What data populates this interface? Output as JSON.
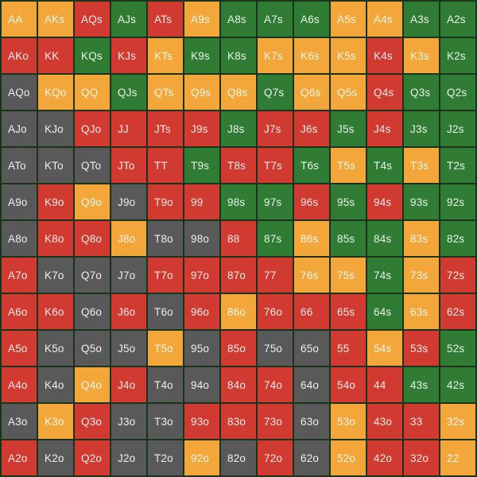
{
  "colors": {
    "orange": "#f3a63a",
    "red": "#d13a30",
    "green": "#307c34",
    "gray": "#595959",
    "grid_line": "#1b331b",
    "text": "rgba(255,255,255,0.90)"
  },
  "chart_data": {
    "type": "heatmap",
    "grid_size": 13,
    "legend_position": "none",
    "grid": "on",
    "color_categories": [
      "orange",
      "red",
      "green",
      "gray"
    ],
    "labels": [
      [
        "AA",
        "AKs",
        "AQs",
        "AJs",
        "ATs",
        "A9s",
        "A8s",
        "A7s",
        "A6s",
        "A5s",
        "A4s",
        "A3s",
        "A2s"
      ],
      [
        "AKo",
        "KK",
        "KQs",
        "KJs",
        "KTs",
        "K9s",
        "K8s",
        "K7s",
        "K6s",
        "K5s",
        "K4s",
        "K3s",
        "K2s"
      ],
      [
        "AQo",
        "KQo",
        "QQ",
        "QJs",
        "QTs",
        "Q9s",
        "Q8s",
        "Q7s",
        "Q6s",
        "Q5s",
        "Q4s",
        "Q3s",
        "Q2s"
      ],
      [
        "AJo",
        "KJo",
        "QJo",
        "JJ",
        "JTs",
        "J9s",
        "J8s",
        "J7s",
        "J6s",
        "J5s",
        "J4s",
        "J3s",
        "J2s"
      ],
      [
        "ATo",
        "KTo",
        "QTo",
        "JTo",
        "TT",
        "T9s",
        "T8s",
        "T7s",
        "T6s",
        "T5s",
        "T4s",
        "T3s",
        "T2s"
      ],
      [
        "A9o",
        "K9o",
        "Q9o",
        "J9o",
        "T9o",
        "99",
        "98s",
        "97s",
        "96s",
        "95s",
        "94s",
        "93s",
        "92s"
      ],
      [
        "A8o",
        "K8o",
        "Q8o",
        "J8o",
        "T8o",
        "98o",
        "88",
        "87s",
        "86s",
        "85s",
        "84s",
        "83s",
        "82s"
      ],
      [
        "A7o",
        "K7o",
        "Q7o",
        "J7o",
        "T7o",
        "97o",
        "87o",
        "77",
        "76s",
        "75s",
        "74s",
        "73s",
        "72s"
      ],
      [
        "A6o",
        "K6o",
        "Q6o",
        "J6o",
        "T6o",
        "96o",
        "86o",
        "76o",
        "66",
        "65s",
        "64s",
        "63s",
        "62s"
      ],
      [
        "A5o",
        "K5o",
        "Q5o",
        "J5o",
        "T5o",
        "95o",
        "85o",
        "75o",
        "65o",
        "55",
        "54s",
        "53s",
        "52s"
      ],
      [
        "A4o",
        "K4o",
        "Q4o",
        "J4o",
        "T4o",
        "94o",
        "84o",
        "74o",
        "64o",
        "54o",
        "44",
        "43s",
        "42s"
      ],
      [
        "A3o",
        "K3o",
        "Q3o",
        "J3o",
        "T3o",
        "93o",
        "83o",
        "73o",
        "63o",
        "53o",
        "43o",
        "33",
        "32s"
      ],
      [
        "A2o",
        "K2o",
        "Q2o",
        "J2o",
        "T2o",
        "92o",
        "82o",
        "72o",
        "62o",
        "52o",
        "42o",
        "32o",
        "22"
      ]
    ],
    "cell_colors": [
      [
        "orange",
        "orange",
        "red",
        "green",
        "red",
        "orange",
        "green",
        "green",
        "green",
        "orange",
        "orange",
        "green",
        "green"
      ],
      [
        "red",
        "red",
        "green",
        "red",
        "orange",
        "green",
        "green",
        "orange",
        "orange",
        "orange",
        "red",
        "orange",
        "green"
      ],
      [
        "gray",
        "orange",
        "orange",
        "green",
        "orange",
        "orange",
        "orange",
        "green",
        "orange",
        "orange",
        "red",
        "green",
        "green"
      ],
      [
        "gray",
        "gray",
        "red",
        "red",
        "red",
        "red",
        "green",
        "red",
        "red",
        "green",
        "red",
        "green",
        "green"
      ],
      [
        "gray",
        "gray",
        "gray",
        "red",
        "red",
        "green",
        "red",
        "red",
        "green",
        "orange",
        "green",
        "orange",
        "green"
      ],
      [
        "gray",
        "red",
        "orange",
        "gray",
        "red",
        "red",
        "green",
        "green",
        "red",
        "green",
        "red",
        "green",
        "green"
      ],
      [
        "gray",
        "red",
        "red",
        "orange",
        "gray",
        "gray",
        "red",
        "green",
        "orange",
        "green",
        "green",
        "orange",
        "green"
      ],
      [
        "red",
        "gray",
        "gray",
        "gray",
        "red",
        "red",
        "red",
        "red",
        "orange",
        "orange",
        "green",
        "orange",
        "red"
      ],
      [
        "red",
        "red",
        "gray",
        "red",
        "gray",
        "red",
        "orange",
        "red",
        "red",
        "red",
        "green",
        "orange",
        "red"
      ],
      [
        "red",
        "gray",
        "gray",
        "gray",
        "orange",
        "gray",
        "red",
        "gray",
        "gray",
        "red",
        "orange",
        "red",
        "green"
      ],
      [
        "red",
        "gray",
        "orange",
        "red",
        "gray",
        "gray",
        "red",
        "red",
        "gray",
        "red",
        "red",
        "green",
        "green"
      ],
      [
        "gray",
        "orange",
        "red",
        "gray",
        "gray",
        "red",
        "red",
        "red",
        "gray",
        "orange",
        "red",
        "red",
        "orange"
      ],
      [
        "red",
        "gray",
        "red",
        "gray",
        "gray",
        "orange",
        "gray",
        "red",
        "gray",
        "orange",
        "red",
        "red",
        "orange"
      ]
    ]
  }
}
